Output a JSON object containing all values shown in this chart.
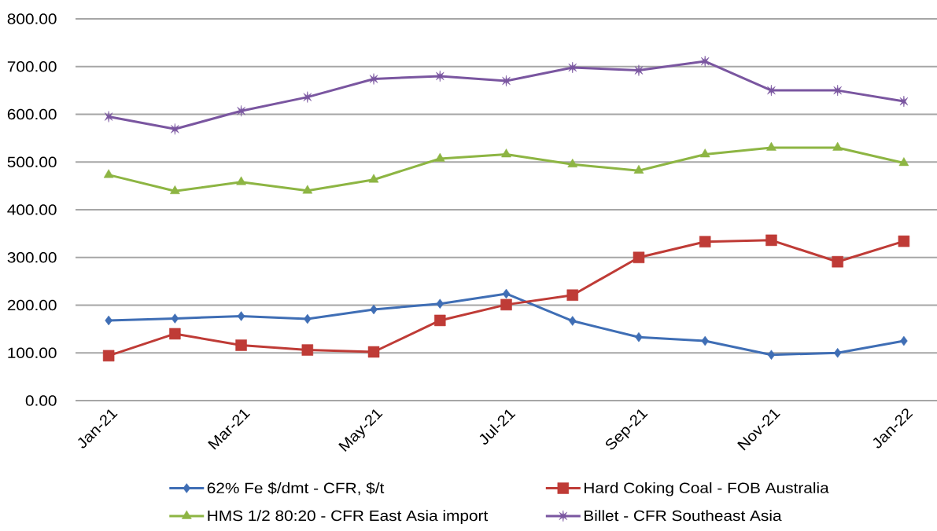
{
  "chart_data": {
    "type": "line",
    "categories": [
      "Jan-21",
      null,
      "Mar-21",
      null,
      "May-21",
      null,
      "Jul-21",
      null,
      "Sep-21",
      null,
      "Nov-21",
      null,
      "Jan-22"
    ],
    "ylim": [
      0,
      800
    ],
    "yticks": [
      {
        "value": 0,
        "label": "0.00"
      },
      {
        "value": 100,
        "label": "100.00"
      },
      {
        "value": 200,
        "label": "200.00"
      },
      {
        "value": 300,
        "label": "300.00"
      },
      {
        "value": 400,
        "label": "400.00"
      },
      {
        "value": 500,
        "label": "500.00"
      },
      {
        "value": 600,
        "label": "600.00"
      },
      {
        "value": 700,
        "label": "700.00"
      },
      {
        "value": 800,
        "label": "800.00"
      }
    ],
    "grid": "y",
    "legend": "bottom",
    "line_style": "solid",
    "series": [
      {
        "name": "62% Fe $/dmt - CFR, $/t",
        "color": "#3f6eb5",
        "marker": "diamond",
        "values": [
          168,
          172,
          177,
          171,
          191,
          203,
          224,
          167,
          133,
          125,
          96,
          100,
          125
        ]
      },
      {
        "name": "Hard Coking Coal - FOB Australia",
        "color": "#bf3b36",
        "marker": "square",
        "values": [
          94,
          140,
          116,
          106,
          102,
          168,
          201,
          221,
          300,
          333,
          336,
          291,
          334
        ]
      },
      {
        "name": "HMS 1/2 80:20 - CFR East Asia import",
        "color": "#8db543",
        "marker": "triangle",
        "values": [
          473,
          439,
          458,
          440,
          463,
          507,
          516,
          495,
          482,
          516,
          530,
          530,
          498
        ]
      },
      {
        "name": "Billet - CFR Southeast Asia",
        "color": "#7a56a0",
        "marker": "cross",
        "values": [
          595,
          569,
          607,
          636,
          674,
          680,
          670,
          698,
          692,
          711,
          650,
          650,
          627
        ]
      }
    ]
  }
}
